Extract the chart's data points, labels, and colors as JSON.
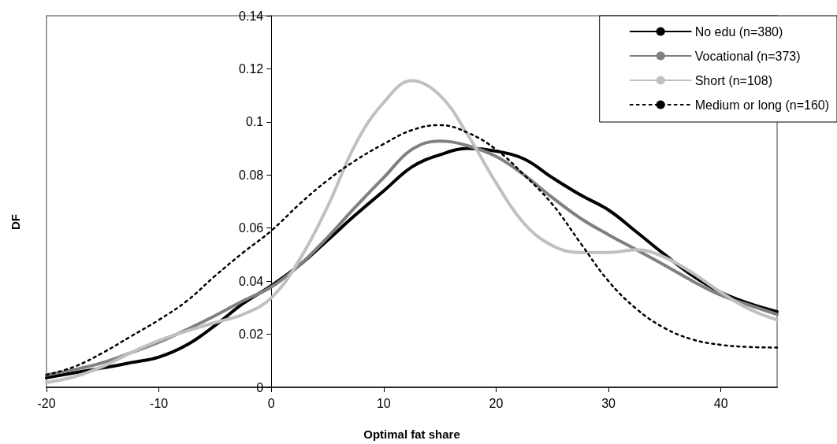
{
  "chart_data": {
    "type": "line",
    "xlabel": "Optimal fat share",
    "ylabel": "DF",
    "x": [
      -20,
      -17.5,
      -15,
      -12.5,
      -10,
      -7.5,
      -5,
      -2.5,
      0,
      2.5,
      5,
      7.5,
      10,
      12.5,
      15,
      17.5,
      20,
      22.5,
      25,
      27.5,
      30,
      32.5,
      35,
      37.5,
      40,
      42.5,
      45
    ],
    "series": [
      {
        "name": "No edu (n=380)",
        "color": "#000000",
        "line_style": "solid",
        "values": [
          0.0036,
          0.0055,
          0.0073,
          0.0093,
          0.0114,
          0.016,
          0.0233,
          0.0316,
          0.0383,
          0.046,
          0.0554,
          0.065,
          0.074,
          0.083,
          0.0876,
          0.09,
          0.089,
          0.086,
          0.079,
          0.0725,
          0.0668,
          0.0585,
          0.05,
          0.042,
          0.0358,
          0.0316,
          0.0285
        ]
      },
      {
        "name": "Vocational (n=373)",
        "color": "#808080",
        "line_style": "solid",
        "values": [
          0.0047,
          0.0067,
          0.0093,
          0.013,
          0.017,
          0.0218,
          0.027,
          0.0326,
          0.0378,
          0.046,
          0.0565,
          0.068,
          0.079,
          0.0896,
          0.0928,
          0.091,
          0.087,
          0.08,
          0.0715,
          0.0637,
          0.0575,
          0.0518,
          0.046,
          0.04,
          0.0347,
          0.031,
          0.0275
        ]
      },
      {
        "name": "Short (n=108)",
        "color": "#c0c0c0",
        "line_style": "solid",
        "values": [
          0.0018,
          0.004,
          0.0078,
          0.013,
          0.0176,
          0.0212,
          0.0244,
          0.0275,
          0.0337,
          0.048,
          0.068,
          0.0917,
          0.1073,
          0.1155,
          0.11,
          0.095,
          0.077,
          0.0617,
          0.0534,
          0.0508,
          0.0508,
          0.0518,
          0.049,
          0.043,
          0.0358,
          0.0295,
          0.0254
        ]
      },
      {
        "name": "Medium or long (n=160)",
        "color": "#000000",
        "line_style": "dotted",
        "values": [
          0.0047,
          0.0078,
          0.013,
          0.0192,
          0.0254,
          0.0326,
          0.042,
          0.0508,
          0.059,
          0.069,
          0.078,
          0.0855,
          0.0917,
          0.0969,
          0.0988,
          0.0959,
          0.0896,
          0.08,
          0.069,
          0.0544,
          0.04,
          0.0295,
          0.0223,
          0.018,
          0.016,
          0.0152,
          0.015
        ]
      }
    ],
    "xlim": [
      -20,
      45
    ],
    "xticks": [
      -20,
      -10,
      0,
      10,
      20,
      30,
      40
    ],
    "ylim": [
      0,
      0.14
    ],
    "yticks": [
      0,
      0.02,
      0.04,
      0.06,
      0.08,
      0.1,
      0.12,
      0.14
    ],
    "grid": false,
    "legend": "top right",
    "marker": "none"
  }
}
